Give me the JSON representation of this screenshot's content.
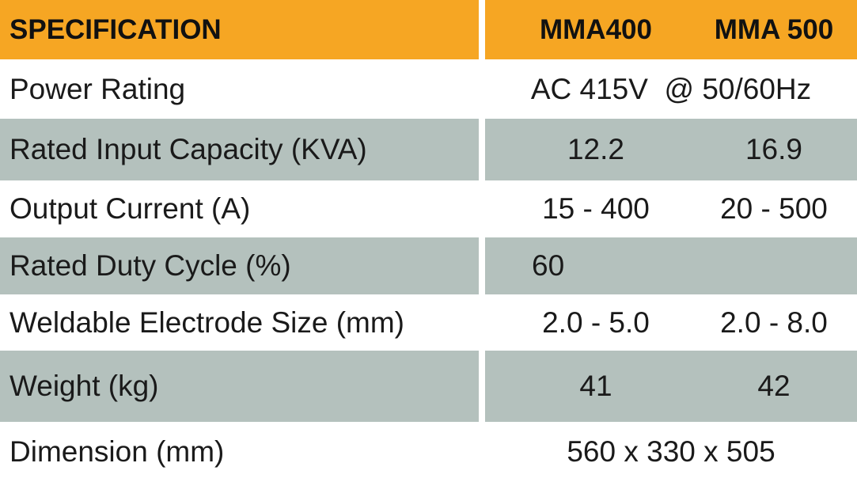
{
  "table": {
    "header": [
      "SPECIFICATION",
      "MMA400",
      "MMA 500"
    ],
    "rows": [
      [
        "Power Rating",
        "AC 415V  @ 50/60Hz"
      ],
      [
        "Rated Input Capacity (KVA)",
        "12.2",
        "16.9"
      ],
      [
        "Output Current (A)",
        "15 - 400",
        "20 - 500"
      ],
      [
        "Rated Duty Cycle (%)",
        "60"
      ],
      [
        "Weldable Electrode Size (mm)",
        "2.0 - 5.0",
        "2.0 - 8.0"
      ],
      [
        "Weight (kg)",
        "41",
        "42"
      ],
      [
        "Dimension (mm)",
        "560 x 330 x 505"
      ]
    ]
  }
}
